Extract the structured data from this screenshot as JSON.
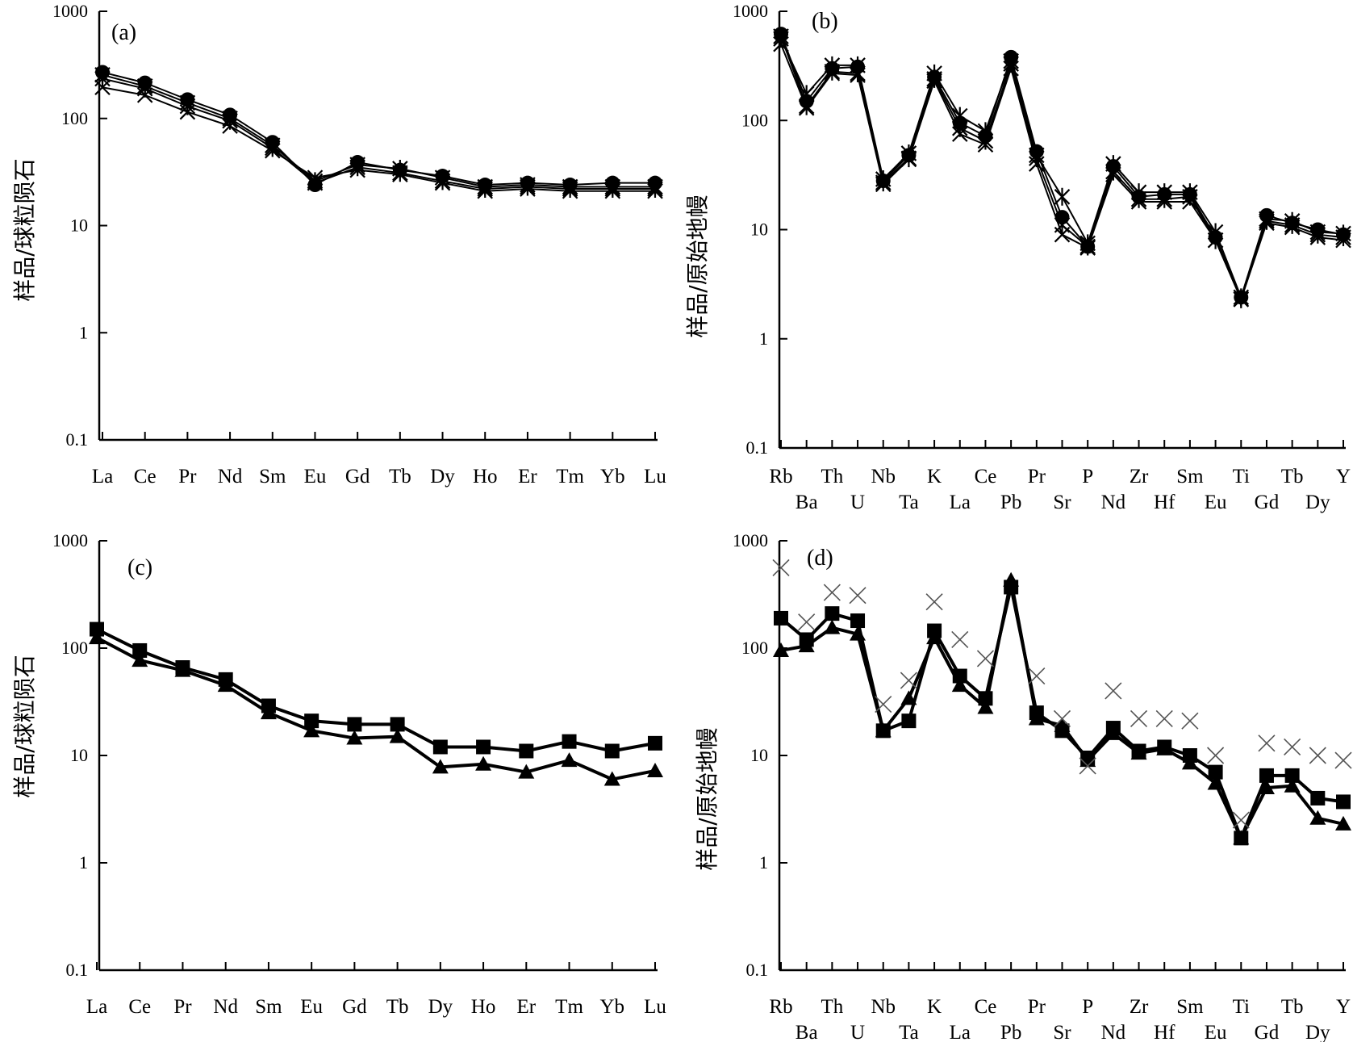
{
  "chart_data": [
    {
      "type": "line",
      "panel_label": "(a)",
      "ylabel": "样品/球粒陨石",
      "yscale": "log",
      "ylim": [
        0.1,
        1000
      ],
      "y_ticks": [
        "0.1",
        "1",
        "10",
        "100",
        "1000"
      ],
      "categories": [
        "La",
        "Ce",
        "Pr",
        "Nd",
        "Sm",
        "Eu",
        "Gd",
        "Tb",
        "Dy",
        "Ho",
        "Er",
        "Tm",
        "Yb",
        "Lu"
      ],
      "series": [
        {
          "name": "s1",
          "marker": "circle",
          "values": [
            270,
            215,
            150,
            108,
            60,
            24,
            39,
            33,
            29,
            24,
            25,
            24,
            25,
            25
          ]
        },
        {
          "name": "s2",
          "marker": "asterisk",
          "values": [
            255,
            200,
            140,
            100,
            56,
            26,
            37,
            34,
            28,
            23,
            24,
            23,
            23,
            23
          ]
        },
        {
          "name": "s3",
          "marker": "asterisk",
          "values": [
            235,
            190,
            130,
            95,
            53,
            25,
            35,
            31,
            26,
            22,
            23,
            22,
            22,
            22
          ]
        },
        {
          "name": "s4",
          "marker": "cross",
          "values": [
            195,
            165,
            115,
            85,
            50,
            28,
            33,
            30,
            25,
            21,
            22,
            21,
            21,
            21
          ]
        }
      ]
    },
    {
      "type": "line",
      "panel_label": "(b)",
      "ylabel": "样品/原始地幔",
      "yscale": "log",
      "ylim": [
        0.1,
        1000
      ],
      "y_ticks": [
        "0.1",
        "1",
        "10",
        "100",
        "1000"
      ],
      "categories": [
        "Rb",
        "Ba",
        "Th",
        "U",
        "Nb",
        "Ta",
        "K",
        "La",
        "Ce",
        "Pb",
        "Pr",
        "Sr",
        "P",
        "Nd",
        "Zr",
        "Hf",
        "Sm",
        "Eu",
        "Ti",
        "Gd",
        "Tb",
        "Dy",
        "Y"
      ],
      "series": [
        {
          "name": "s1",
          "marker": "circle",
          "values": [
            620,
            150,
            300,
            310,
            28,
            48,
            250,
            95,
            72,
            380,
            52,
            13,
            7,
            38,
            20,
            21,
            21,
            8.5,
            2.4,
            13.5,
            11.5,
            10,
            9
          ]
        },
        {
          "name": "s2",
          "marker": "asterisk",
          "values": [
            560,
            175,
            320,
            320,
            29,
            50,
            270,
            110,
            80,
            350,
            48,
            20,
            7.5,
            40,
            22,
            22,
            22,
            9.5,
            2.4,
            12.5,
            12,
            9.5,
            9.2
          ]
        },
        {
          "name": "s3",
          "marker": "asterisk",
          "values": [
            590,
            135,
            280,
            270,
            27,
            45,
            240,
            85,
            65,
            330,
            45,
            11,
            7,
            34,
            19,
            19,
            20,
            8,
            2.3,
            12,
            11,
            9,
            8.5
          ]
        },
        {
          "name": "s4",
          "marker": "cross",
          "values": [
            500,
            130,
            270,
            260,
            26,
            44,
            230,
            75,
            60,
            300,
            40,
            9,
            6.8,
            32,
            18,
            18,
            18,
            8,
            2.3,
            11.5,
            10.5,
            8.5,
            8
          ]
        }
      ]
    },
    {
      "type": "line",
      "panel_label": "(c)",
      "ylabel": "样品/球粒陨石",
      "yscale": "log",
      "ylim": [
        0.1,
        1000
      ],
      "y_ticks": [
        "0.1",
        "1",
        "10",
        "100",
        "1000"
      ],
      "categories": [
        "La",
        "Ce",
        "Pr",
        "Nd",
        "Sm",
        "Eu",
        "Gd",
        "Tb",
        "Dy",
        "Ho",
        "Er",
        "Tm",
        "Yb",
        "Lu"
      ],
      "series": [
        {
          "name": "s1",
          "marker": "square",
          "values": [
            150,
            95,
            66,
            51,
            29,
            21,
            19.5,
            19.5,
            12,
            12,
            11,
            13.5,
            11,
            13
          ]
        },
        {
          "name": "s2",
          "marker": "triangle",
          "values": [
            125,
            77,
            62,
            45,
            25,
            17,
            14.5,
            15,
            7.8,
            8.3,
            7,
            9,
            6,
            7.2
          ]
        }
      ]
    },
    {
      "type": "line",
      "panel_label": "(d)",
      "ylabel": "样品/原始地幔",
      "yscale": "log",
      "ylim": [
        0.1,
        1000
      ],
      "y_ticks": [
        "0.1",
        "1",
        "10",
        "100",
        "1000"
      ],
      "categories": [
        "Rb",
        "Ba",
        "Th",
        "U",
        "Nb",
        "Ta",
        "K",
        "La",
        "Ce",
        "Pb",
        "Pr",
        "Sr",
        "P",
        "Nd",
        "Zr",
        "Hf",
        "Sm",
        "Eu",
        "Ti",
        "Gd",
        "Tb",
        "Dy",
        "Y"
      ],
      "series": [
        {
          "name": "s1",
          "marker": "square",
          "line": true,
          "values": [
            190,
            120,
            210,
            180,
            17,
            21,
            145,
            55,
            34,
            370,
            25,
            17,
            9.5,
            18,
            11,
            12,
            10,
            7,
            1.7,
            6.5,
            6.5,
            4,
            3.7
          ]
        },
        {
          "name": "s2",
          "marker": "triangle",
          "line": true,
          "values": [
            95,
            105,
            155,
            135,
            17,
            34,
            125,
            45,
            28,
            430,
            22,
            19,
            9,
            16,
            10.5,
            11.5,
            8.5,
            5.5,
            1.7,
            5,
            5.2,
            2.6,
            2.3
          ]
        },
        {
          "name": "reference",
          "marker": "x",
          "line": false,
          "values": [
            560,
            175,
            330,
            310,
            30,
            50,
            270,
            120,
            80,
            null,
            55,
            22,
            8,
            40,
            22,
            22,
            21,
            10,
            2.5,
            13,
            12,
            10,
            9
          ]
        }
      ]
    }
  ]
}
